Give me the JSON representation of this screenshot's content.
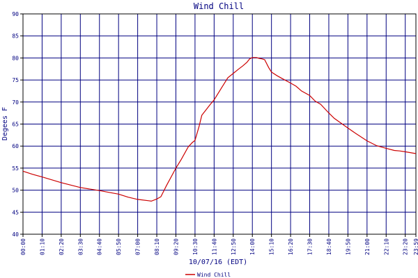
{
  "chart_data": {
    "type": "line",
    "title": "Wind Chill",
    "xlabel": "10/07/16 (EDT)",
    "ylabel": "Degees F",
    "ylim": [
      40,
      90
    ],
    "yticks": [
      40,
      45,
      50,
      55,
      60,
      65,
      70,
      75,
      80,
      85,
      90
    ],
    "xticks": [
      "00:00",
      "01:10",
      "02:20",
      "03:30",
      "04:40",
      "05:50",
      "07:00",
      "08:10",
      "09:20",
      "10:30",
      "11:40",
      "12:50",
      "14:00",
      "15:10",
      "16:20",
      "17:30",
      "18:40",
      "19:50",
      "21:00",
      "22:10",
      "23:20",
      "23:59"
    ],
    "grid": true,
    "legend_position": "bottom-left",
    "colors": {
      "series": "#cc0000",
      "grid": "#000080",
      "text": "#000080",
      "axis": "#000000"
    },
    "series": [
      {
        "name": "Wind Chill",
        "x": [
          "00:00",
          "00:35",
          "01:10",
          "02:20",
          "03:30",
          "04:40",
          "05:15",
          "05:50",
          "06:25",
          "07:00",
          "07:40",
          "07:50",
          "08:10",
          "08:25",
          "08:45",
          "09:20",
          "09:40",
          "10:05",
          "10:20",
          "10:30",
          "10:45",
          "10:55",
          "11:10",
          "11:25",
          "11:40",
          "12:00",
          "12:15",
          "12:30",
          "12:50",
          "13:10",
          "13:25",
          "13:40",
          "13:50",
          "14:00",
          "14:15",
          "14:25",
          "14:35",
          "14:45",
          "15:00",
          "15:10",
          "15:30",
          "15:50",
          "16:20",
          "16:40",
          "17:00",
          "17:30",
          "17:50",
          "18:10",
          "18:40",
          "19:00",
          "19:50",
          "20:20",
          "21:00",
          "21:35",
          "22:10",
          "22:40",
          "23:00",
          "23:20",
          "23:59"
        ],
        "values": [
          54.3,
          53.6,
          53.0,
          51.7,
          50.6,
          49.9,
          49.5,
          49.1,
          48.4,
          47.9,
          47.6,
          47.5,
          48.0,
          48.5,
          51.0,
          55.0,
          57.0,
          59.8,
          60.8,
          61.3,
          64.5,
          67.0,
          68.2,
          69.4,
          70.5,
          72.5,
          74.0,
          75.5,
          76.5,
          77.5,
          78.2,
          79.0,
          79.8,
          80.1,
          80.1,
          79.9,
          79.8,
          79.6,
          77.8,
          76.8,
          76.0,
          75.3,
          74.3,
          73.6,
          72.5,
          71.5,
          70.2,
          69.5,
          67.5,
          66.3,
          64.1,
          62.8,
          61.2,
          60.1,
          59.5,
          59.0,
          58.9,
          58.7,
          58.3
        ]
      }
    ]
  }
}
